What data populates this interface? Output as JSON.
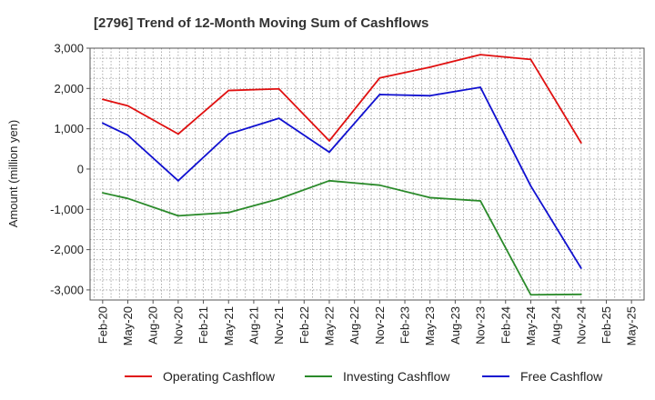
{
  "chart_data": {
    "type": "line",
    "title": "[2796]  Trend of 12-Month Moving Sum of Cashflows",
    "xlabel": "",
    "ylabel": "Amount (million yen)",
    "ylim": [
      -3250,
      3000
    ],
    "yticks": [
      3000,
      2000,
      1000,
      0,
      -1000,
      -2000,
      -3000
    ],
    "ytick_labels": [
      "3,000",
      "2,000",
      "1,000",
      "0",
      "-1,000",
      "-2,000",
      "-3,000"
    ],
    "categories": [
      "Feb-20",
      "May-20",
      "Aug-20",
      "Nov-20",
      "Feb-21",
      "May-21",
      "Aug-21",
      "Nov-21",
      "Feb-22",
      "May-22",
      "Aug-22",
      "Nov-22",
      "Feb-23",
      "May-23",
      "Aug-23",
      "Nov-23",
      "Feb-24",
      "May-24",
      "Aug-24",
      "Nov-24",
      "Feb-25",
      "May-25"
    ],
    "grid": true,
    "legend_position": "bottom",
    "series": [
      {
        "name": "Operating Cashflow",
        "color": "#e01010",
        "values": [
          1730,
          1570,
          null,
          870,
          null,
          1950,
          null,
          1990,
          null,
          700,
          null,
          2260,
          null,
          2530,
          null,
          2840,
          null,
          2720,
          null,
          650,
          null,
          null
        ]
      },
      {
        "name": "Investing Cashflow",
        "color": "#2a8a2a",
        "values": [
          -590,
          -730,
          null,
          -1160,
          null,
          -1080,
          null,
          -740,
          null,
          -290,
          null,
          -400,
          null,
          -710,
          null,
          -790,
          null,
          -3120,
          null,
          -3110,
          null,
          null
        ]
      },
      {
        "name": "Free Cashflow",
        "color": "#1010d0",
        "values": [
          1140,
          840,
          null,
          -290,
          null,
          870,
          null,
          1260,
          null,
          420,
          null,
          1850,
          null,
          1820,
          null,
          2030,
          null,
          -420,
          null,
          -2460,
          null,
          null
        ]
      }
    ]
  }
}
